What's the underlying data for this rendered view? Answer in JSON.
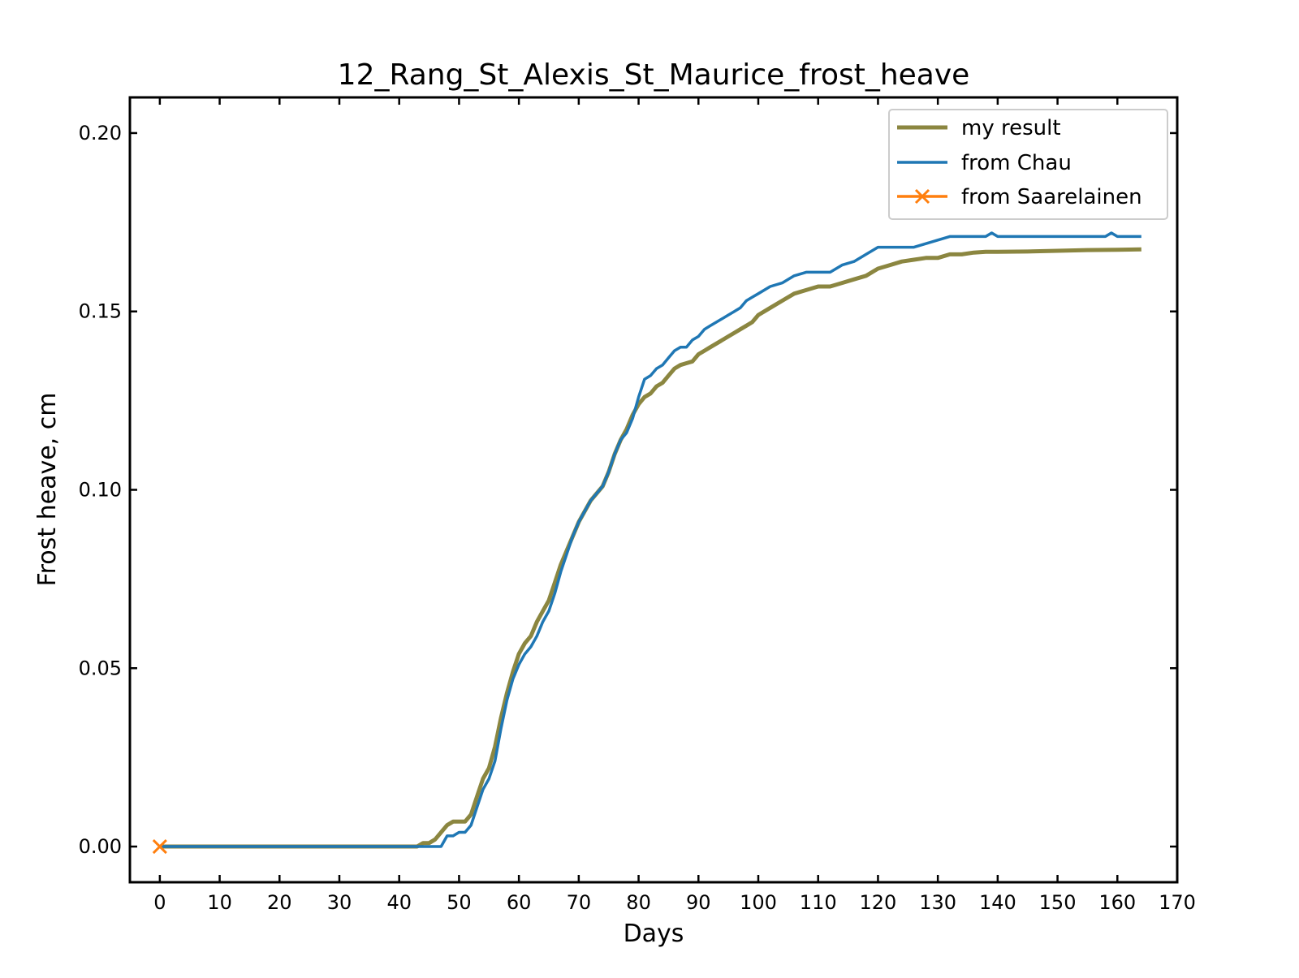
{
  "chart_data": {
    "type": "line",
    "title": "12_Rang_St_Alexis_St_Maurice_frost_heave",
    "xlabel": "Days",
    "ylabel": "Frost heave, cm",
    "xlim": [
      -5,
      170
    ],
    "ylim": [
      -0.01,
      0.21
    ],
    "xticks": [
      0,
      10,
      20,
      30,
      40,
      50,
      60,
      70,
      80,
      90,
      100,
      110,
      120,
      130,
      140,
      150,
      160,
      170
    ],
    "xtick_labels": [
      "0",
      "10",
      "20",
      "30",
      "40",
      "50",
      "60",
      "70",
      "80",
      "90",
      "100",
      "110",
      "120",
      "130",
      "140",
      "150",
      "160",
      "170"
    ],
    "yticks": [
      0.0,
      0.05,
      0.1,
      0.15,
      0.2
    ],
    "ytick_labels": [
      "0.00",
      "0.05",
      "0.10",
      "0.15",
      "0.20"
    ],
    "grid": false,
    "legend_position": "top-right",
    "series": [
      {
        "name": "my result",
        "color": "#8b8640",
        "marker": "none",
        "x": [
          0,
          42,
          43,
          44,
          45,
          46,
          47,
          48,
          49,
          50,
          51,
          52,
          53,
          54,
          55,
          56,
          57,
          58,
          59,
          60,
          61,
          62,
          63,
          64,
          65,
          66,
          67,
          68,
          69,
          70,
          71,
          72,
          73,
          74,
          75,
          76,
          77,
          78,
          79,
          80,
          81,
          82,
          83,
          84,
          85,
          86,
          87,
          88,
          89,
          90,
          91,
          92,
          93,
          94,
          95,
          96,
          97,
          98,
          99,
          100,
          102,
          104,
          106,
          108,
          110,
          112,
          114,
          116,
          118,
          120,
          122,
          124,
          126,
          128,
          130,
          132,
          134,
          136,
          138,
          140,
          145,
          150,
          155,
          160,
          164
        ],
        "y": [
          0.0,
          0.0,
          0.0,
          0.001,
          0.001,
          0.002,
          0.004,
          0.006,
          0.007,
          0.007,
          0.007,
          0.009,
          0.014,
          0.019,
          0.022,
          0.028,
          0.036,
          0.043,
          0.049,
          0.054,
          0.057,
          0.059,
          0.063,
          0.066,
          0.069,
          0.074,
          0.079,
          0.083,
          0.087,
          0.091,
          0.094,
          0.097,
          0.099,
          0.101,
          0.105,
          0.11,
          0.114,
          0.117,
          0.121,
          0.124,
          0.126,
          0.127,
          0.129,
          0.13,
          0.132,
          0.134,
          0.135,
          0.1355,
          0.136,
          0.138,
          0.139,
          0.14,
          0.141,
          0.142,
          0.143,
          0.144,
          0.145,
          0.146,
          0.147,
          0.149,
          0.151,
          0.153,
          0.155,
          0.156,
          0.157,
          0.157,
          0.158,
          0.159,
          0.16,
          0.162,
          0.163,
          0.164,
          0.1645,
          0.165,
          0.165,
          0.166,
          0.166,
          0.1665,
          0.1667,
          0.1667,
          0.1668,
          0.167,
          0.1672,
          0.1673,
          0.1674
        ]
      },
      {
        "name": "from Chau",
        "color": "#1f77b4",
        "marker": "none",
        "x": [
          0,
          46,
          47,
          48,
          49,
          50,
          51,
          52,
          53,
          54,
          55,
          56,
          57,
          58,
          59,
          60,
          61,
          62,
          63,
          64,
          65,
          66,
          67,
          68,
          69,
          70,
          71,
          72,
          73,
          74,
          75,
          76,
          77,
          78,
          79,
          80,
          81,
          82,
          83,
          84,
          85,
          86,
          87,
          88,
          89,
          90,
          91,
          92,
          93,
          94,
          95,
          96,
          97,
          98,
          99,
          100,
          102,
          104,
          106,
          108,
          110,
          112,
          114,
          116,
          118,
          120,
          122,
          124,
          126,
          128,
          130,
          132,
          134,
          136,
          138,
          139,
          140,
          145,
          150,
          155,
          158,
          159,
          160,
          164
        ],
        "y": [
          0.0,
          0.0,
          0.0,
          0.003,
          0.003,
          0.004,
          0.004,
          0.006,
          0.011,
          0.016,
          0.019,
          0.024,
          0.033,
          0.041,
          0.047,
          0.051,
          0.054,
          0.056,
          0.059,
          0.063,
          0.066,
          0.071,
          0.077,
          0.082,
          0.087,
          0.091,
          0.094,
          0.097,
          0.099,
          0.101,
          0.105,
          0.11,
          0.114,
          0.116,
          0.12,
          0.126,
          0.131,
          0.132,
          0.134,
          0.135,
          0.137,
          0.139,
          0.14,
          0.14,
          0.142,
          0.143,
          0.145,
          0.146,
          0.147,
          0.148,
          0.149,
          0.15,
          0.151,
          0.153,
          0.154,
          0.155,
          0.157,
          0.158,
          0.16,
          0.161,
          0.161,
          0.161,
          0.163,
          0.164,
          0.166,
          0.168,
          0.168,
          0.168,
          0.168,
          0.169,
          0.17,
          0.171,
          0.171,
          0.171,
          0.171,
          0.172,
          0.171,
          0.171,
          0.171,
          0.171,
          0.171,
          0.172,
          0.171,
          0.171
        ]
      },
      {
        "name": "from Saarelainen",
        "color": "#ff7f0e",
        "marker": "x",
        "x": [
          0
        ],
        "y": [
          0.0
        ]
      }
    ]
  }
}
